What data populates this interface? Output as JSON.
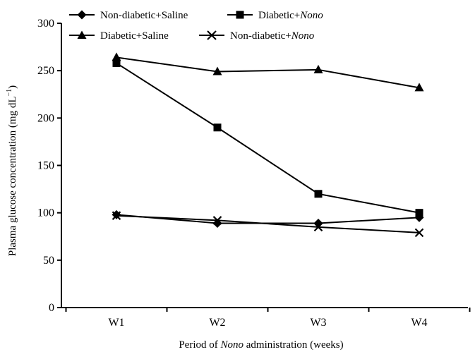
{
  "chart_data": {
    "type": "line",
    "title": "",
    "xlabel": "Period of Nono administration (weeks)",
    "ylabel": "Plasma glucose concentration (mg dL⁻¹)",
    "categories": [
      "W1",
      "W2",
      "W3",
      "W4"
    ],
    "ylim": [
      0,
      300
    ],
    "yticks": [
      "0",
      "50",
      "100",
      "150",
      "200",
      "250",
      "300"
    ],
    "grid": false,
    "legend_position": "top",
    "series": [
      {
        "name": "Non-diabetic+Saline",
        "marker": "diamond",
        "values": [
          98,
          89,
          89,
          95
        ]
      },
      {
        "name": "Diabetic+Nono",
        "marker": "square",
        "values": [
          258,
          190,
          120,
          100
        ]
      },
      {
        "name": "Diabetic+Saline",
        "marker": "triangle",
        "values": [
          264,
          249,
          251,
          232
        ]
      },
      {
        "name": "Non-diabetic+Nono",
        "marker": "cross",
        "values": [
          97,
          92,
          85,
          79
        ]
      }
    ],
    "line_color": "#000000"
  },
  "legend": {
    "items": [
      {
        "prefix": "Non-diabetic+Saline",
        "italic": ""
      },
      {
        "prefix": "Diabetic+",
        "italic": "Nono"
      },
      {
        "prefix": "Diabetic+Saline",
        "italic": ""
      },
      {
        "prefix": "Non-diabetic+",
        "italic": "Nono"
      }
    ]
  },
  "labels": {
    "x_prefix": "Period of ",
    "x_italic": "Nono",
    "x_suffix": " administration (weeks)",
    "y_main": "Plasma glucose concentration (mg dL",
    "y_sup": "−1",
    "y_close": ")"
  }
}
